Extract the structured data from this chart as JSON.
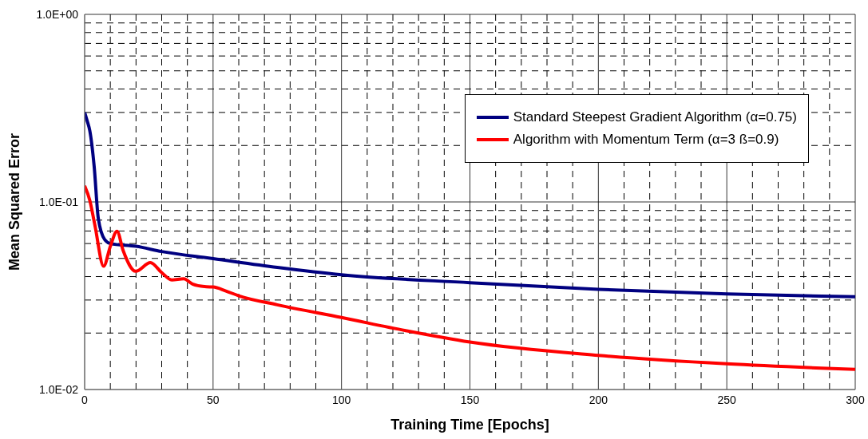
{
  "chart_data": {
    "type": "line",
    "xlabel": "Training Time [Epochs]",
    "ylabel": "Mean Squared Error",
    "log": "y",
    "grid": true,
    "legend": "top right",
    "line_style": "solid",
    "xlim": [
      0,
      300
    ],
    "xticks": [
      0,
      {
        "value": 10,
        "label": null
      },
      {
        "value": 20,
        "label": null
      },
      {
        "value": 30,
        "label": null
      },
      {
        "value": 40,
        "label": null
      },
      50,
      {
        "value": 60,
        "label": null
      },
      {
        "value": 70,
        "label": null
      },
      {
        "value": 80,
        "label": null
      },
      {
        "value": 90,
        "label": null
      },
      100,
      {
        "value": 110,
        "label": null
      },
      {
        "value": 120,
        "label": null
      },
      {
        "value": 130,
        "label": null
      },
      {
        "value": 140,
        "label": null
      },
      150,
      {
        "value": 160,
        "label": null
      },
      {
        "value": 170,
        "label": null
      },
      {
        "value": 180,
        "label": null
      },
      {
        "value": 190,
        "label": null
      },
      200,
      {
        "value": 210,
        "label": null
      },
      {
        "value": 220,
        "label": null
      },
      {
        "value": 230,
        "label": null
      },
      {
        "value": 240,
        "label": null
      },
      250,
      {
        "value": 260,
        "label": null
      },
      {
        "value": 270,
        "label": null
      },
      {
        "value": 280,
        "label": null
      },
      {
        "value": 290,
        "label": null
      },
      300
    ],
    "ylim": [
      0.01,
      1
    ],
    "yticks": [
      {
        "value": 0.01,
        "label": "1.0E-02"
      },
      {
        "value": 0.02,
        "label": null
      },
      {
        "value": 0.03,
        "label": null
      },
      {
        "value": 0.04,
        "label": null
      },
      {
        "value": 0.05,
        "label": null
      },
      {
        "value": 0.06,
        "label": null
      },
      {
        "value": 0.07,
        "label": null
      },
      {
        "value": 0.08,
        "label": null
      },
      {
        "value": 0.09,
        "label": null
      },
      {
        "value": 0.1,
        "label": "1.0E-01"
      },
      {
        "value": 0.2,
        "label": null
      },
      {
        "value": 0.3,
        "label": null
      },
      {
        "value": 0.4,
        "label": null
      },
      {
        "value": 0.5,
        "label": null
      },
      {
        "value": 0.6,
        "label": null
      },
      {
        "value": 0.7,
        "label": null
      },
      {
        "value": 0.8,
        "label": null
      },
      {
        "value": 0.9,
        "label": null
      },
      {
        "value": 1,
        "label": "1.0E+00"
      }
    ],
    "series": [
      {
        "name": "Standard Steepest Gradient Algorithm (α=0.75)",
        "color": "#000080",
        "x": [
          0,
          1,
          2,
          3.7,
          5.3,
          7.8,
          10,
          20,
          30,
          50,
          75,
          100,
          150,
          200,
          250,
          300
        ],
        "values": [
          0.3,
          0.27,
          0.24,
          0.155,
          0.082,
          0.063,
          0.06,
          0.058,
          0.0544,
          0.0499,
          0.0448,
          0.0409,
          0.0371,
          0.0342,
          0.0323,
          0.0312
        ]
      },
      {
        "name": "Algorithm with Momentum Term (α=3 ß=0.9)",
        "color": "#ff0000",
        "x": [
          0,
          2,
          4,
          7.4,
          10,
          12.6,
          15,
          19.9,
          25.6,
          30,
          33.9,
          38.6,
          42,
          47.4,
          50,
          55,
          60,
          75,
          100,
          125,
          150,
          200,
          250,
          300
        ],
        "values": [
          0.122,
          0.102,
          0.075,
          0.0454,
          0.058,
          0.0698,
          0.055,
          0.0427,
          0.0475,
          0.042,
          0.0384,
          0.0389,
          0.0365,
          0.0353,
          0.0352,
          0.0335,
          0.0316,
          0.0283,
          0.0242,
          0.0206,
          0.0179,
          0.0152,
          0.0137,
          0.0128
        ]
      }
    ]
  }
}
